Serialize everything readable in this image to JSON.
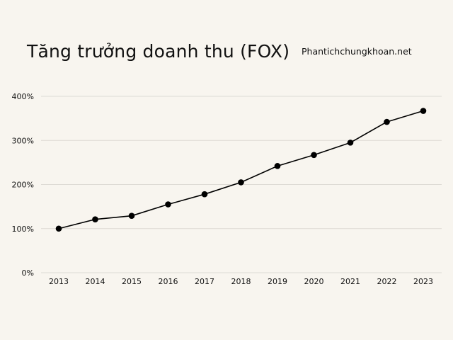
{
  "chart_data": {
    "type": "line",
    "title": "Tăng trưởng doanh thu (FOX)",
    "source_label": "Phantichchungkhoan.net",
    "xlabel": "",
    "ylabel": "",
    "x": [
      "2013",
      "2014",
      "2015",
      "2016",
      "2017",
      "2018",
      "2019",
      "2020",
      "2021",
      "2022",
      "2023"
    ],
    "series": [
      {
        "values": [
          100,
          121,
          129,
          155,
          178,
          205,
          242,
          267,
          295,
          342,
          367
        ]
      }
    ],
    "y_ticks": [
      0,
      100,
      200,
      300,
      400
    ],
    "y_tick_labels": [
      "0%",
      "100%",
      "200%",
      "300%",
      "400%"
    ],
    "ylim": [
      0,
      400
    ],
    "grid": "horizontal",
    "legend": "none",
    "colors": {
      "background": "#f8f5ef",
      "line": "#000000",
      "marker": "#000000",
      "grid": "#dddad4",
      "text": "#111111"
    }
  }
}
